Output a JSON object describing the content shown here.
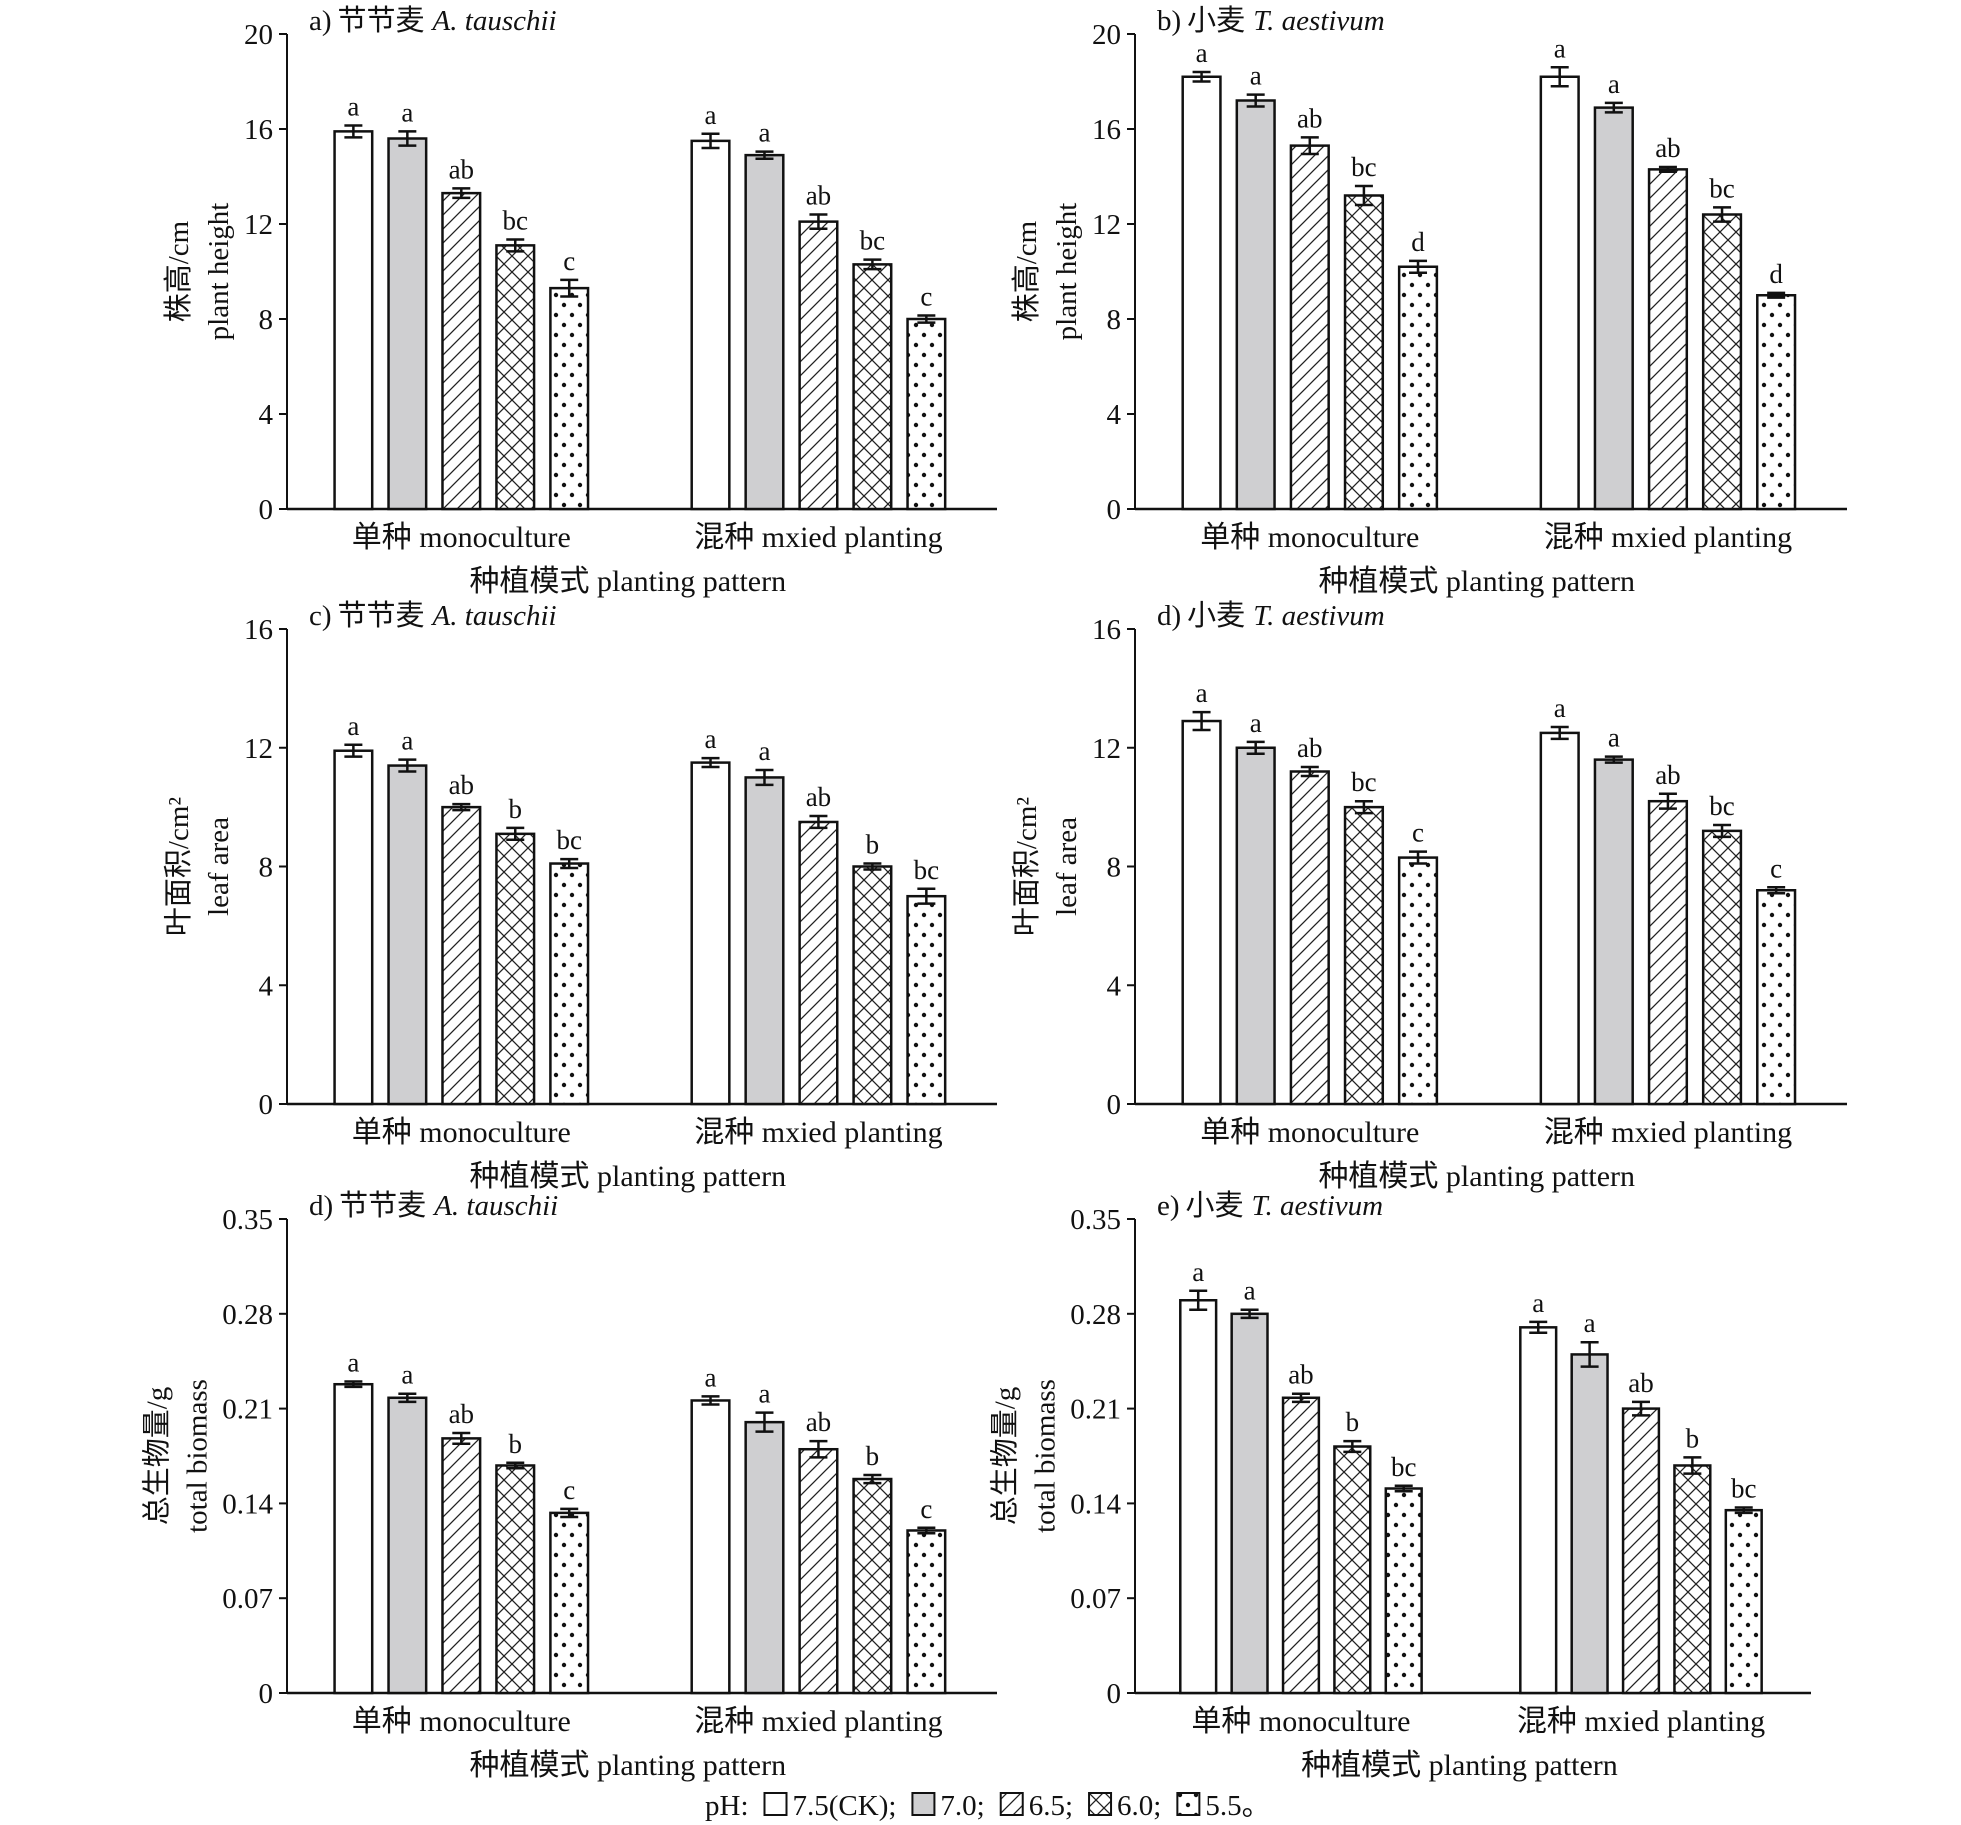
{
  "chart_data": [
    {
      "type": "bar",
      "panel_label": "a)",
      "title_cn": "节节麦",
      "title_species": "A. tauschii",
      "ylabel_cn": "株高/cm",
      "ylabel_en": "plant height",
      "xlabel": "种植模式 planting pattern",
      "categories": [
        "单种 monoculture",
        "混种 mxied planting"
      ],
      "ylim": [
        0,
        20
      ],
      "yticks": [
        "0",
        "4",
        "8",
        "12",
        "16",
        "20"
      ],
      "ytick_values": [
        0,
        4,
        8,
        12,
        16,
        20
      ],
      "series": [
        {
          "name": "7.5(CK)",
          "values": [
            15.9,
            15.5
          ],
          "errors": [
            0.25,
            0.3
          ],
          "letters": [
            "a",
            "a"
          ]
        },
        {
          "name": "7.0",
          "values": [
            15.6,
            14.9
          ],
          "errors": [
            0.3,
            0.15
          ],
          "letters": [
            "a",
            "a"
          ]
        },
        {
          "name": "6.5",
          "values": [
            13.3,
            12.1
          ],
          "errors": [
            0.2,
            0.3
          ],
          "letters": [
            "ab",
            "ab"
          ]
        },
        {
          "name": "6.0",
          "values": [
            11.1,
            10.3
          ],
          "errors": [
            0.25,
            0.2
          ],
          "letters": [
            "bc",
            "bc"
          ]
        },
        {
          "name": "5.5",
          "values": [
            9.3,
            8.0
          ],
          "errors": [
            0.35,
            0.15
          ],
          "letters": [
            "c",
            "c"
          ]
        }
      ]
    },
    {
      "type": "bar",
      "panel_label": "b)",
      "title_cn": "小麦",
      "title_species": "T. aestivum",
      "ylabel_cn": "株高/cm",
      "ylabel_en": "plant height",
      "xlabel": "种植模式 planting pattern",
      "categories": [
        "单种 monoculture",
        "混种 mxied planting"
      ],
      "ylim": [
        0,
        20
      ],
      "yticks": [
        "0",
        "4",
        "8",
        "12",
        "16",
        "20"
      ],
      "ytick_values": [
        0,
        4,
        8,
        12,
        16,
        20
      ],
      "series": [
        {
          "name": "7.5(CK)",
          "values": [
            18.2,
            18.2
          ],
          "errors": [
            0.2,
            0.4
          ],
          "letters": [
            "a",
            "a"
          ]
        },
        {
          "name": "7.0",
          "values": [
            17.2,
            16.9
          ],
          "errors": [
            0.25,
            0.2
          ],
          "letters": [
            "a",
            "a"
          ]
        },
        {
          "name": "6.5",
          "values": [
            15.3,
            14.3
          ],
          "errors": [
            0.35,
            0.1
          ],
          "letters": [
            "ab",
            "ab"
          ]
        },
        {
          "name": "6.0",
          "values": [
            13.2,
            12.4
          ],
          "errors": [
            0.4,
            0.3
          ],
          "letters": [
            "bc",
            "bc"
          ]
        },
        {
          "name": "5.5",
          "values": [
            10.2,
            9.0
          ],
          "errors": [
            0.25,
            0.1
          ],
          "letters": [
            "d",
            "d"
          ]
        }
      ]
    },
    {
      "type": "bar",
      "panel_label": "c)",
      "title_cn": "节节麦",
      "title_species": "A. tauschii",
      "ylabel_cn": "叶面积/cm²",
      "ylabel_en": "leaf area",
      "xlabel": "种植模式 planting pattern",
      "categories": [
        "单种 monoculture",
        "混种 mxied planting"
      ],
      "ylim": [
        0,
        16
      ],
      "yticks": [
        "0",
        "4",
        "8",
        "12",
        "16"
      ],
      "ytick_values": [
        0,
        4,
        8,
        12,
        16
      ],
      "series": [
        {
          "name": "7.5(CK)",
          "values": [
            11.9,
            11.5
          ],
          "errors": [
            0.2,
            0.15
          ],
          "letters": [
            "a",
            "a"
          ]
        },
        {
          "name": "7.0",
          "values": [
            11.4,
            11.0
          ],
          "errors": [
            0.2,
            0.25
          ],
          "letters": [
            "a",
            "a"
          ]
        },
        {
          "name": "6.5",
          "values": [
            10.0,
            9.5
          ],
          "errors": [
            0.1,
            0.2
          ],
          "letters": [
            "ab",
            "ab"
          ]
        },
        {
          "name": "6.0",
          "values": [
            9.1,
            8.0
          ],
          "errors": [
            0.2,
            0.1
          ],
          "letters": [
            "b",
            "b"
          ]
        },
        {
          "name": "5.5",
          "values": [
            8.1,
            7.0
          ],
          "errors": [
            0.15,
            0.25
          ],
          "letters": [
            "bc",
            "bc"
          ]
        }
      ]
    },
    {
      "type": "bar",
      "panel_label": "d)",
      "title_cn": "小麦",
      "title_species": "T. aestivum",
      "ylabel_cn": "叶面积/cm²",
      "ylabel_en": "leaf area",
      "xlabel": "种植模式 planting pattern",
      "categories": [
        "单种 monoculture",
        "混种 mxied planting"
      ],
      "ylim": [
        0,
        16
      ],
      "yticks": [
        "0",
        "4",
        "8",
        "12",
        "16"
      ],
      "ytick_values": [
        0,
        4,
        8,
        12,
        16
      ],
      "series": [
        {
          "name": "7.5(CK)",
          "values": [
            12.9,
            12.5
          ],
          "errors": [
            0.3,
            0.2
          ],
          "letters": [
            "a",
            "a"
          ]
        },
        {
          "name": "7.0",
          "values": [
            12.0,
            11.6
          ],
          "errors": [
            0.2,
            0.1
          ],
          "letters": [
            "a",
            "a"
          ]
        },
        {
          "name": "6.5",
          "values": [
            11.2,
            10.2
          ],
          "errors": [
            0.15,
            0.25
          ],
          "letters": [
            "ab",
            "ab"
          ]
        },
        {
          "name": "6.0",
          "values": [
            10.0,
            9.2
          ],
          "errors": [
            0.2,
            0.2
          ],
          "letters": [
            "bc",
            "bc"
          ]
        },
        {
          "name": "5.5",
          "values": [
            8.3,
            7.2
          ],
          "errors": [
            0.2,
            0.1
          ],
          "letters": [
            "c",
            "c"
          ]
        }
      ]
    },
    {
      "type": "bar",
      "panel_label": "d)",
      "title_cn": "节节麦",
      "title_species": "A. tauschii",
      "ylabel_cn": "总生物量/g",
      "ylabel_en": "total biomass",
      "xlabel": "种植模式 planting pattern",
      "categories": [
        "单种 monoculture",
        "混种 mxied planting"
      ],
      "ylim": [
        0,
        0.35
      ],
      "yticks": [
        "0",
        "0.07",
        "0.14",
        "0.21",
        "0.28",
        "0.35"
      ],
      "ytick_values": [
        0,
        0.07,
        0.14,
        0.21,
        0.28,
        0.35
      ],
      "series": [
        {
          "name": "7.5(CK)",
          "values": [
            0.228,
            0.216
          ],
          "errors": [
            0.002,
            0.003
          ],
          "letters": [
            "a",
            "a"
          ]
        },
        {
          "name": "7.0",
          "values": [
            0.218,
            0.2
          ],
          "errors": [
            0.003,
            0.007
          ],
          "letters": [
            "a",
            "a"
          ]
        },
        {
          "name": "6.5",
          "values": [
            0.188,
            0.18
          ],
          "errors": [
            0.004,
            0.006
          ],
          "letters": [
            "ab",
            "ab"
          ]
        },
        {
          "name": "6.0",
          "values": [
            0.168,
            0.158
          ],
          "errors": [
            0.002,
            0.003
          ],
          "letters": [
            "b",
            "b"
          ]
        },
        {
          "name": "5.5",
          "values": [
            0.133,
            0.12
          ],
          "errors": [
            0.003,
            0.002
          ],
          "letters": [
            "c",
            "c"
          ]
        }
      ]
    },
    {
      "type": "bar",
      "panel_label": "e)",
      "title_cn": "小麦",
      "title_species": "T. aestivum",
      "ylabel_cn": "总生物量/g",
      "ylabel_en": "total biomass",
      "xlabel": "种植模式 planting pattern",
      "categories": [
        "单种 monoculture",
        "混种 mxied planting"
      ],
      "ylim": [
        0,
        0.35
      ],
      "yticks": [
        "0",
        "0.07",
        "0.14",
        "0.21",
        "0.28",
        "0.35"
      ],
      "ytick_values": [
        0,
        0.07,
        0.14,
        0.21,
        0.28,
        0.35
      ],
      "series": [
        {
          "name": "7.5(CK)",
          "values": [
            0.29,
            0.27
          ],
          "errors": [
            0.007,
            0.004
          ],
          "letters": [
            "a",
            "a"
          ]
        },
        {
          "name": "7.0",
          "values": [
            0.28,
            0.25
          ],
          "errors": [
            0.003,
            0.009
          ],
          "letters": [
            "a",
            "a"
          ]
        },
        {
          "name": "6.5",
          "values": [
            0.218,
            0.21
          ],
          "errors": [
            0.003,
            0.005
          ],
          "letters": [
            "ab",
            "ab"
          ]
        },
        {
          "name": "6.0",
          "values": [
            0.182,
            0.168
          ],
          "errors": [
            0.004,
            0.006
          ],
          "letters": [
            "b",
            "b"
          ]
        },
        {
          "name": "5.5",
          "values": [
            0.151,
            0.135
          ],
          "errors": [
            0.002,
            0.002
          ],
          "letters": [
            "bc",
            "bc"
          ]
        }
      ]
    }
  ],
  "legend": {
    "prefix": "pH:",
    "items": [
      "7.5(CK);",
      "7.0;",
      "6.5;",
      "6.0;",
      "5.5。"
    ],
    "fills": [
      "#ffffff",
      "#cfcfd1",
      "diag",
      "cross",
      "dots"
    ]
  }
}
